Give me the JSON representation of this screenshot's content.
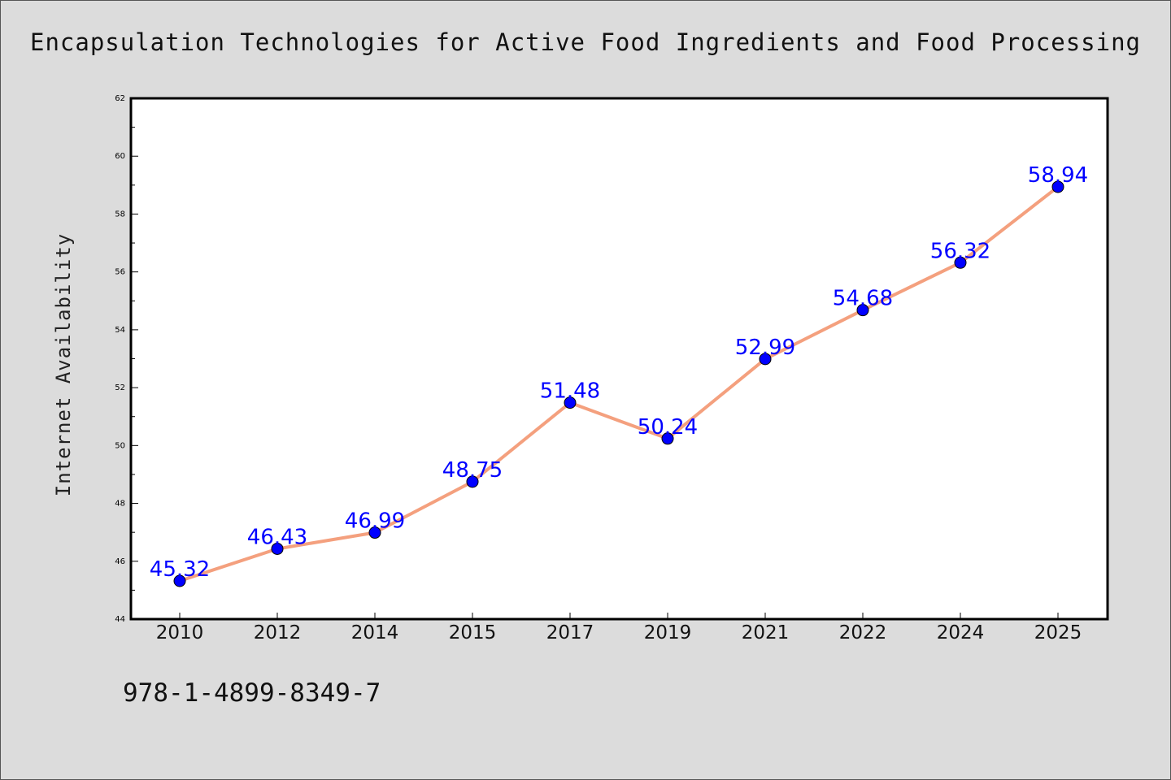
{
  "chart_data": {
    "type": "line",
    "title": "Encapsulation Technologies for Active Food Ingredients and Food Processing",
    "xlabel": "",
    "ylabel": "Internet Availability",
    "categories": [
      "2010",
      "2012",
      "2014",
      "2015",
      "2017",
      "2019",
      "2021",
      "2022",
      "2024",
      "2025"
    ],
    "series": [
      {
        "values": [
          45.32,
          46.43,
          46.99,
          48.75,
          51.48,
          50.24,
          52.99,
          54.68,
          56.32,
          58.94
        ],
        "labels": [
          "45.32",
          "46.43",
          "46.99",
          "48.75",
          "51.48",
          "50.24",
          "52.99",
          "54.68",
          "56.32",
          "58.94"
        ]
      }
    ],
    "ylim": [
      44,
      62
    ],
    "yticks": [
      "44",
      "46",
      "48",
      "50",
      "52",
      "54",
      "56",
      "58",
      "60",
      "62"
    ],
    "grid": false,
    "line_color": "#f4a07e",
    "marker_color": "#0000ff",
    "label_color": "#0000ff",
    "background": "#dcdcdc",
    "plot_background": "#ffffff"
  },
  "footer": {
    "isbn": "978-1-4899-8349-7"
  }
}
